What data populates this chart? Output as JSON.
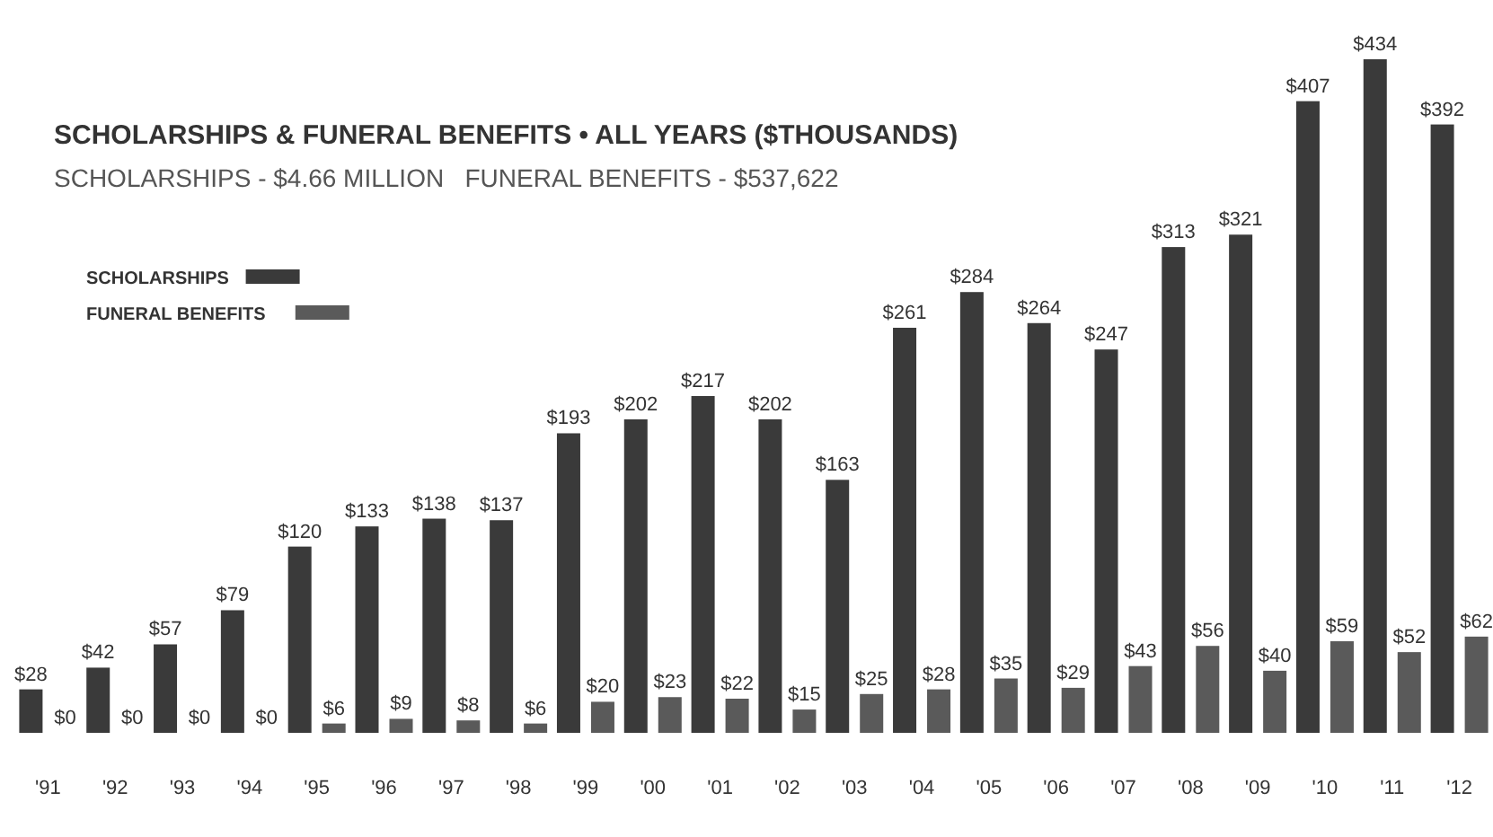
{
  "chart_data": {
    "type": "bar",
    "title": "SCHOLARSHIPS & FUNERAL BENEFITS • ALL YEARS ($THOUSANDS)",
    "subtitle": "SCHOLARSHIPS - $4.66 MILLION   FUNERAL BENEFITS - $537,622",
    "categories": [
      "'91",
      "'92",
      "'93",
      "'94",
      "'95",
      "'96",
      "'97",
      "'98",
      "'99",
      "'00",
      "'01",
      "'02",
      "'03",
      "'04",
      "'05",
      "'06",
      "'07",
      "'08",
      "'09",
      "'10",
      "'11",
      "'12"
    ],
    "series": [
      {
        "name": "SCHOLARSHIPS",
        "color": "#3a3a3a",
        "values": [
          28,
          42,
          57,
          79,
          120,
          133,
          138,
          137,
          193,
          202,
          217,
          202,
          163,
          261,
          284,
          264,
          247,
          313,
          321,
          407,
          434,
          392
        ],
        "value_labels": [
          "$28",
          "$42",
          "$57",
          "$79",
          "$120",
          "$133",
          "$138",
          "$137",
          "$193",
          "$202",
          "$217",
          "$202",
          "$163",
          "$261",
          "$284",
          "$264",
          "$247",
          "$313",
          "$321",
          "$407",
          "$434",
          "$392"
        ]
      },
      {
        "name": "FUNERAL BENEFITS",
        "color": "#5a5a5a",
        "values": [
          0,
          0,
          0,
          0,
          6,
          9,
          8,
          6,
          20,
          23,
          22,
          15,
          25,
          28,
          35,
          29,
          43,
          56,
          40,
          59,
          52,
          62
        ],
        "value_labels": [
          "$0",
          "$0",
          "$0",
          "$0",
          "$6",
          "$9",
          "$8",
          "$6",
          "$20",
          "$23",
          "$22",
          "$15",
          "$25",
          "$28",
          "$35",
          "$29",
          "$43",
          "$56",
          "$40",
          "$59",
          "$52",
          "$62"
        ]
      }
    ],
    "legend": "top left"
  }
}
